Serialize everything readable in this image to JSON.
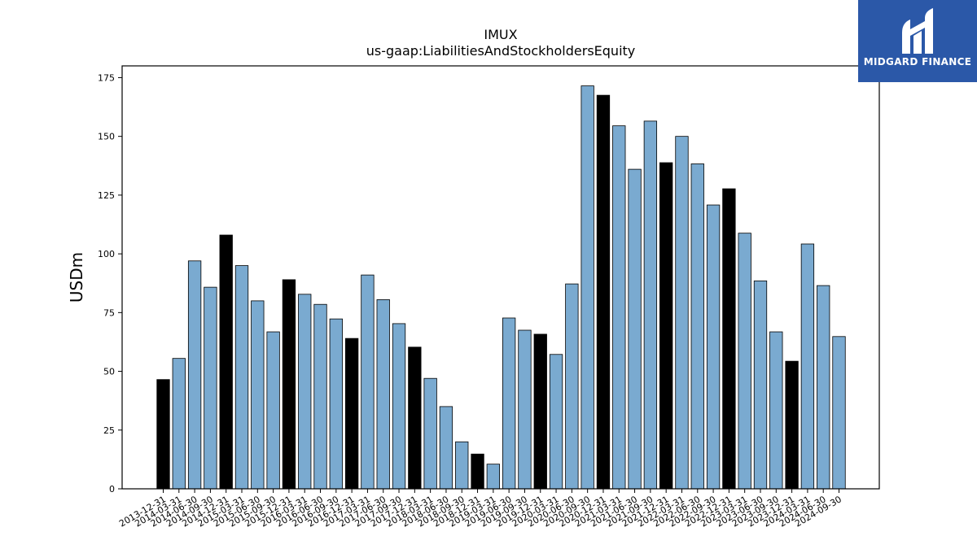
{
  "chart_data": {
    "type": "bar",
    "title": "IMUX",
    "subtitle": "us-gaap:LiabilitiesAndStockholdersEquity",
    "ylabel": "USDm",
    "xlabel": "",
    "ylim": [
      0,
      180
    ],
    "yticks": [
      0,
      25,
      50,
      75,
      100,
      125,
      150,
      175
    ],
    "grid": false,
    "colors": {
      "regular": "#7aaad0",
      "year_end": "#000000",
      "edge": "#000000"
    },
    "categories": [
      "2013-12-31",
      "2014-03-31",
      "2014-06-30",
      "2014-09-30",
      "2014-12-31",
      "2015-03-31",
      "2015-06-30",
      "2015-09-30",
      "2015-12-31",
      "2016-03-31",
      "2016-06-30",
      "2016-09-30",
      "2016-12-31",
      "2017-03-31",
      "2017-06-30",
      "2017-09-30",
      "2017-12-31",
      "2018-03-31",
      "2018-06-30",
      "2018-09-30",
      "2018-12-31",
      "2019-03-31",
      "2019-06-30",
      "2019-09-30",
      "2019-12-31",
      "2020-03-31",
      "2020-06-30",
      "2020-09-30",
      "2020-12-31",
      "2021-03-31",
      "2021-06-30",
      "2021-09-30",
      "2021-12-31",
      "2022-03-31",
      "2022-06-30",
      "2022-09-30",
      "2022-12-31",
      "2023-03-31",
      "2023-06-30",
      "2023-09-30",
      "2023-12-31",
      "2024-03-31",
      "2024-06-30",
      "2024-09-30"
    ],
    "values": [
      46.5,
      55.5,
      97,
      85.8,
      108,
      95,
      80,
      66.8,
      89,
      82.8,
      78.5,
      72.3,
      64,
      91,
      80.5,
      70.3,
      60.3,
      47,
      35,
      20,
      14.8,
      10.5,
      72.7,
      67.5,
      65.8,
      57.2,
      87.2,
      171.5,
      167.5,
      154.5,
      136,
      156.5,
      138.8,
      150,
      138.3,
      120.8,
      127.7,
      108.8,
      88.5,
      66.8,
      54.3,
      104.2,
      86.5,
      64.8
    ],
    "year_end": [
      true,
      false,
      false,
      false,
      true,
      false,
      false,
      false,
      true,
      false,
      false,
      false,
      true,
      false,
      false,
      false,
      true,
      false,
      false,
      false,
      true,
      false,
      false,
      false,
      true,
      false,
      false,
      false,
      true,
      false,
      false,
      false,
      true,
      false,
      false,
      false,
      true,
      false,
      false,
      false,
      true,
      false,
      false,
      false
    ]
  },
  "logo": {
    "name": "MIDGARD FINANCE",
    "bg_color": "#2b58a8"
  }
}
